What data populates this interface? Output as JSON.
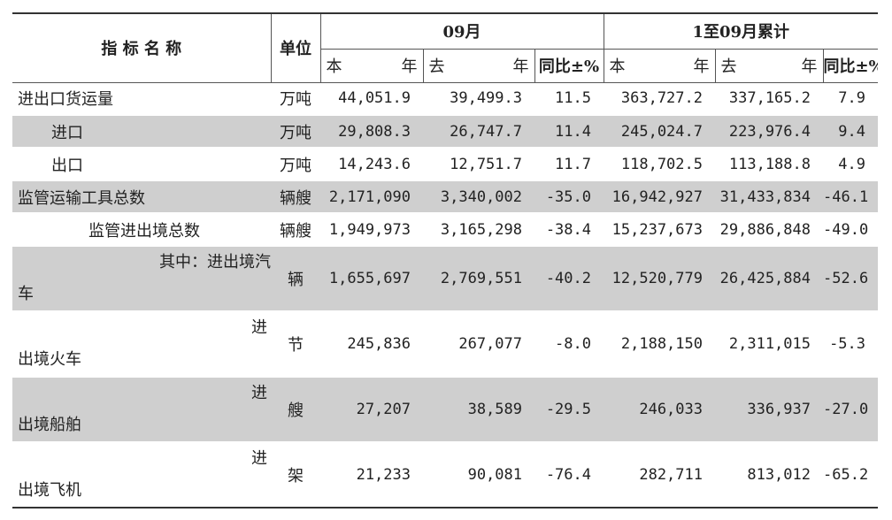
{
  "header": {
    "indicator_name": "指 标 名 称",
    "unit": "单位",
    "period_month": "09月",
    "period_cumulative": "1至09月累计",
    "this_year_a": "本",
    "this_year_b": "年",
    "last_year_a": "去",
    "last_year_b": "年",
    "yoy": "同比±%"
  },
  "rows": [
    {
      "name": "进出口货运量",
      "unit": "万吨",
      "m_this": "44,051.9",
      "m_last": "39,499.3",
      "m_yoy": "11.5",
      "c_this": "363,727.2",
      "c_last": "337,165.2",
      "c_yoy": "7.9"
    },
    {
      "name": "进口",
      "unit": "万吨",
      "m_this": "29,808.3",
      "m_last": "26,747.7",
      "m_yoy": "11.4",
      "c_this": "245,024.7",
      "c_last": "223,976.4",
      "c_yoy": "9.4"
    },
    {
      "name": "出口",
      "unit": "万吨",
      "m_this": "14,243.6",
      "m_last": "12,751.7",
      "m_yoy": "11.7",
      "c_this": "118,702.5",
      "c_last": "113,188.8",
      "c_yoy": "4.9"
    },
    {
      "name": "监管运输工具总数",
      "unit": "辆艘",
      "m_this": "2,171,090",
      "m_last": "3,340,002",
      "m_yoy": "-35.0",
      "c_this": "16,942,927",
      "c_last": "31,433,834",
      "c_yoy": "-46.1"
    },
    {
      "name": "监管进出境总数",
      "unit": "辆艘",
      "m_this": "1,949,973",
      "m_last": "3,165,298",
      "m_yoy": "-38.4",
      "c_this": "15,237,673",
      "c_last": "29,886,848",
      "c_yoy": "-49.0"
    },
    {
      "name_a": "其中：进出境汽",
      "name_b": "车",
      "unit": "辆",
      "m_this": "1,655,697",
      "m_last": "2,769,551",
      "m_yoy": "-40.2",
      "c_this": "12,520,779",
      "c_last": "26,425,884",
      "c_yoy": "-52.6"
    },
    {
      "name_a": "进",
      "name_b": "出境火车",
      "unit": "节",
      "m_this": "245,836",
      "m_last": "267,077",
      "m_yoy": "-8.0",
      "c_this": "2,188,150",
      "c_last": "2,311,015",
      "c_yoy": "-5.3"
    },
    {
      "name_a": "进",
      "name_b": "出境船舶",
      "unit": "艘",
      "m_this": "27,207",
      "m_last": "38,589",
      "m_yoy": "-29.5",
      "c_this": "246,033",
      "c_last": "336,937",
      "c_yoy": "-27.0"
    },
    {
      "name_a": "进",
      "name_b": "出境飞机",
      "unit": "架",
      "m_this": "21,233",
      "m_last": "90,081",
      "m_yoy": "-76.4",
      "c_this": "282,711",
      "c_last": "813,012",
      "c_yoy": "-65.2"
    }
  ]
}
